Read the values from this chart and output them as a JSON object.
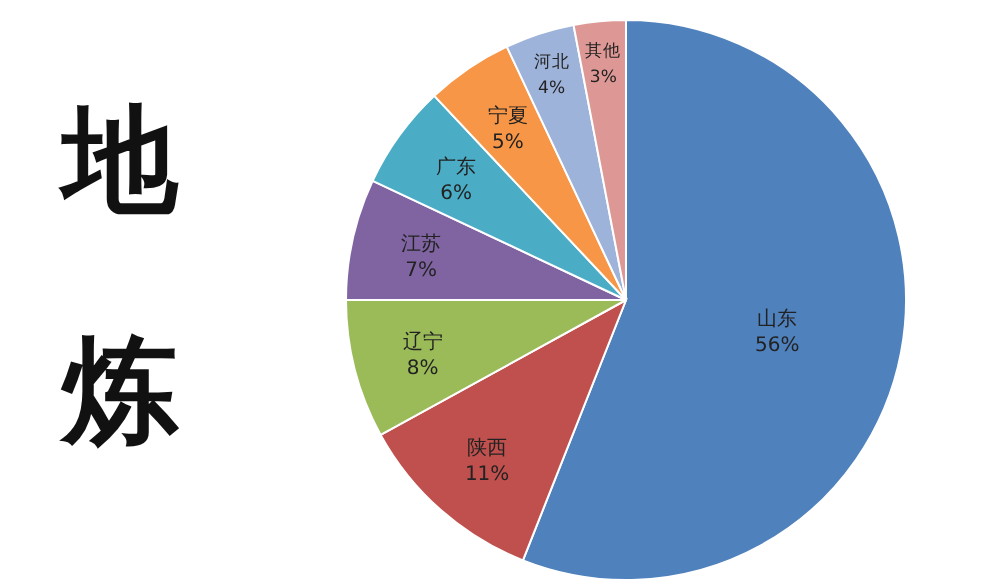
{
  "chart_data": {
    "type": "pie",
    "title": "地炼",
    "categories": [
      "山东",
      "陕西",
      "辽宁",
      "江苏",
      "广东",
      "宁夏",
      "河北",
      "其他"
    ],
    "values": [
      56,
      11,
      8,
      7,
      6,
      5,
      4,
      3
    ],
    "colors": [
      "#4f81bd",
      "#c0504d",
      "#9bbb59",
      "#8064a2",
      "#4bacc6",
      "#f79646",
      "#9eb3da",
      "#dd9895"
    ],
    "value_labels": [
      "56%",
      "11%",
      "8%",
      "7%",
      "6%",
      "5%",
      "4%",
      "3%"
    ]
  }
}
